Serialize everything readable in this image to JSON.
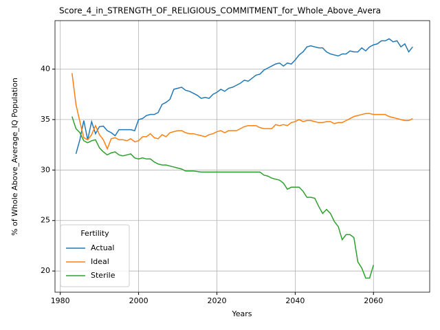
{
  "chart_data": {
    "type": "line",
    "title": "Score_4_in_STRENGTH_OF_RELIGIOUS_COMMITMENT_for_Whole_Above_Avera",
    "xlabel": "Years",
    "ylabel": "% of Whole Above_Average_IQ Population",
    "x": [
      1983,
      1984,
      1985,
      1986,
      1987,
      1988,
      1989,
      1990,
      1991,
      1992,
      1993,
      1994,
      1995,
      1996,
      1997,
      1998,
      1999,
      2000,
      2001,
      2002,
      2003,
      2004,
      2005,
      2006,
      2007,
      2008,
      2009,
      2010,
      2011,
      2012,
      2013,
      2014,
      2015,
      2016,
      2017,
      2018,
      2019,
      2020,
      2021,
      2022,
      2023,
      2024,
      2025,
      2026,
      2027,
      2028,
      2029,
      2030,
      2031,
      2032,
      2033,
      2034,
      2035,
      2036,
      2037,
      2038,
      2039,
      2040,
      2041,
      2042,
      2043,
      2044,
      2045,
      2046,
      2047,
      2048,
      2049,
      2050,
      2051,
      2052,
      2053,
      2054,
      2055,
      2056,
      2057,
      2058,
      2059,
      2060,
      2061,
      2062,
      2063,
      2064,
      2065,
      2066,
      2067,
      2068,
      2069,
      2070
    ],
    "series": [
      {
        "name": "Actual",
        "color": "#1f77b4",
        "values": [
          null,
          31.6,
          33,
          34.9,
          33,
          34.8,
          33.6,
          34.3,
          34.35,
          33.9,
          33.7,
          33.4,
          34,
          34,
          34,
          34,
          33.9,
          35,
          35.1,
          35.4,
          35.5,
          35.5,
          35.7,
          36.5,
          36.7,
          37,
          38,
          38.1,
          38.2,
          37.9,
          37.8,
          37.6,
          37.4,
          37.1,
          37.2,
          37.1,
          37.5,
          37.7,
          38,
          37.8,
          38.1,
          38.2,
          38.4,
          38.6,
          38.9,
          38.8,
          39.1,
          39.4,
          39.5,
          39.9,
          40.1,
          40.3,
          40.5,
          40.6,
          40.3,
          40.6,
          40.5,
          40.9,
          41.4,
          41.7,
          42.2,
          42.3,
          42.2,
          42.1,
          42.1,
          41.7,
          41.5,
          41.4,
          41.3,
          41.5,
          41.5,
          41.8,
          41.7,
          41.7,
          42.1,
          41.8,
          42.2,
          42.4,
          42.5,
          42.8,
          42.8,
          43,
          42.7,
          42.8,
          42.2,
          42.5,
          41.7,
          42.2
        ]
      },
      {
        "name": "Ideal",
        "color": "#ff7f0e",
        "values": [
          39.6,
          36.5,
          34.8,
          33.2,
          33,
          33.5,
          34.4,
          33.5,
          33,
          32.1,
          33.1,
          33.2,
          33,
          33,
          32.9,
          33.1,
          32.8,
          32.9,
          33.3,
          33.3,
          33.6,
          33.2,
          33.1,
          33.5,
          33.3,
          33.7,
          33.8,
          33.9,
          33.9,
          33.7,
          33.6,
          33.6,
          33.5,
          33.4,
          33.3,
          33.5,
          33.6,
          33.8,
          33.9,
          33.7,
          33.9,
          33.9,
          33.9,
          34.1,
          34.3,
          34.4,
          34.4,
          34.4,
          34.2,
          34.1,
          34.1,
          34.1,
          34.5,
          34.4,
          34.5,
          34.4,
          34.7,
          34.8,
          35,
          34.8,
          34.9,
          34.9,
          34.8,
          34.7,
          34.7,
          34.8,
          34.8,
          34.6,
          34.7,
          34.7,
          34.9,
          35.1,
          35.3,
          35.4,
          35.5,
          35.6,
          35.6,
          35.5,
          35.5,
          35.5,
          35.5,
          35.3,
          35.2,
          35.1,
          35,
          34.9,
          34.9,
          35.1
        ]
      },
      {
        "name": "Sterile",
        "color": "#2ca02c",
        "values": [
          35.3,
          34.1,
          33.7,
          32.9,
          32.7,
          32.9,
          33,
          32.2,
          31.8,
          31.5,
          31.7,
          31.8,
          31.5,
          31.4,
          31.5,
          31.6,
          31.2,
          31.1,
          31.2,
          31.1,
          31.1,
          30.8,
          30.6,
          30.5,
          30.5,
          30.4,
          30.3,
          30.2,
          30.1,
          29.9,
          29.9,
          29.9,
          29.85,
          29.8,
          29.8,
          29.8,
          29.8,
          29.8,
          29.8,
          29.8,
          29.8,
          29.8,
          29.8,
          29.8,
          29.8,
          29.8,
          29.8,
          29.8,
          29.8,
          29.5,
          29.4,
          29.2,
          29.1,
          29,
          28.7,
          28.1,
          28.3,
          28.3,
          28.3,
          27.9,
          27.3,
          27.3,
          27.2,
          26.4,
          25.7,
          26.1,
          25.7,
          24.9,
          24.4,
          23.1,
          23.6,
          23.6,
          23.3,
          20.9,
          20.3,
          19.3,
          19.3,
          20.6,
          null,
          null,
          null,
          null,
          null,
          null,
          null,
          null,
          null,
          null
        ]
      }
    ],
    "xlim": [
      1978.65,
      2074.35
    ],
    "ylim": [
      17.9,
      44.8
    ],
    "xticks": [
      1980,
      2000,
      2020,
      2040,
      2060
    ],
    "yticks": [
      20,
      25,
      30,
      35,
      40
    ],
    "grid": true,
    "legend": {
      "title": "Fertility",
      "loc": "lower left"
    }
  }
}
